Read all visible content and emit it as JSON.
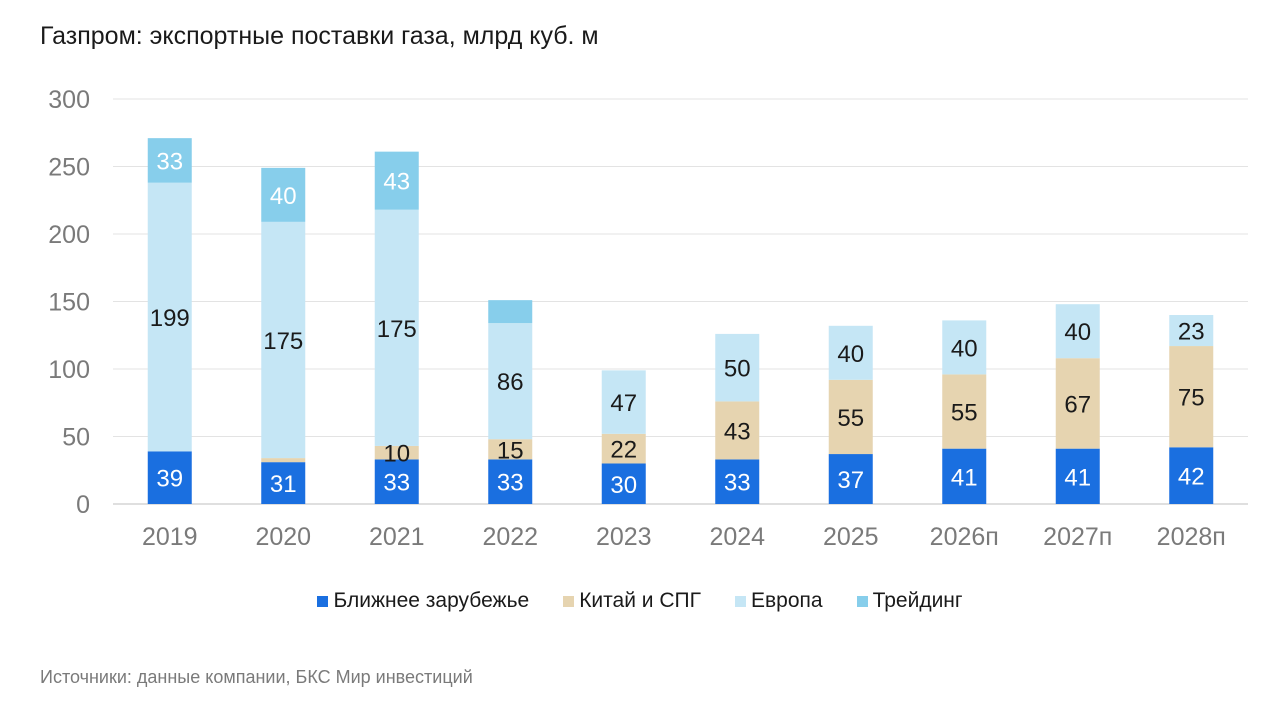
{
  "title": "Газпром: экспортные поставки газа, млрд куб. м",
  "source": "Источники: данные компании, БКС Мир инвестиций",
  "chart_data": {
    "type": "bar",
    "stacked": true,
    "title": "Газпром: экспортные поставки газа, млрд куб. м",
    "categories": [
      "2019",
      "2020",
      "2021",
      "2022",
      "2023",
      "2024",
      "2025",
      "2026п",
      "2027п",
      "2028п"
    ],
    "ylim": [
      0,
      300
    ],
    "yticks": [
      0,
      50,
      100,
      150,
      200,
      250,
      300
    ],
    "grid": true,
    "legend_position": "bottom",
    "series": [
      {
        "name": "Ближнее зарубежье",
        "color": "#1a6fe0",
        "label_color": "#ffffff",
        "values": [
          39,
          31,
          33,
          33,
          30,
          33,
          37,
          41,
          41,
          42
        ],
        "labels": [
          "39",
          "31",
          "33",
          "33",
          "30",
          "33",
          "37",
          "41",
          "41",
          "42"
        ]
      },
      {
        "name": "Китай и СПГ",
        "color": "#e6d4b0",
        "label_color": "#1a1a1a",
        "values": [
          0,
          3,
          10,
          15,
          22,
          43,
          55,
          55,
          67,
          75
        ],
        "labels": [
          "",
          "",
          "10",
          "15",
          "22",
          "43",
          "55",
          "55",
          "67",
          "75"
        ]
      },
      {
        "name": "Европа",
        "color": "#c5e6f5",
        "label_color": "#1a1a1a",
        "values": [
          199,
          175,
          175,
          86,
          47,
          50,
          40,
          40,
          40,
          23
        ],
        "labels": [
          "199",
          "175",
          "175",
          "86",
          "47",
          "50",
          "40",
          "40",
          "40",
          "23"
        ]
      },
      {
        "name": "Трейдинг",
        "color": "#87ceeb",
        "label_color": "#ffffff",
        "values": [
          33,
          40,
          43,
          17,
          0,
          0,
          0,
          0,
          0,
          0
        ],
        "labels": [
          "33",
          "40",
          "43",
          "",
          "",
          "",
          "",
          "",
          "",
          ""
        ]
      }
    ]
  }
}
